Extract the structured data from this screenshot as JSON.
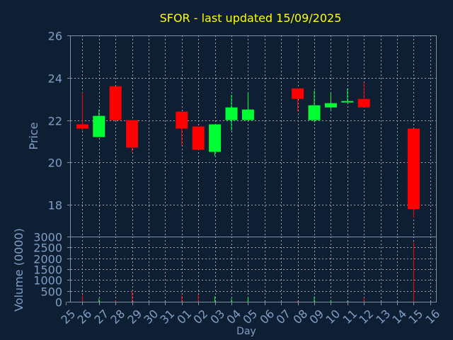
{
  "chart_data": {
    "type": "candlestick",
    "title": "SFOR - last updated 15/09/2025",
    "xlabel": "Day",
    "price_ylabel": "Price",
    "volume_ylabel": "Volume (0000)",
    "price_ylim": [
      16.5,
      26
    ],
    "price_yticks": [
      "18",
      "20",
      "22",
      "24",
      "26"
    ],
    "volume_ylim": [
      0,
      3000
    ],
    "volume_yticks": [
      "0",
      "500",
      "1000",
      "1500",
      "2000",
      "2500",
      "3000"
    ],
    "x_ticks": [
      "25",
      "26",
      "27",
      "28",
      "29",
      "30",
      "31",
      "01",
      "02",
      "03",
      "04",
      "05",
      "06",
      "07",
      "08",
      "09",
      "10",
      "11",
      "12",
      "13",
      "14",
      "15",
      "16"
    ],
    "grid": true,
    "colors": {
      "background": "#0f1f33",
      "up": "#00ff33",
      "down": "#ff0000",
      "axis": "#7f8fa6",
      "title": "#ffff00",
      "label": "#7f9fc6",
      "grid": "#9aa5b5"
    },
    "candles": [
      {
        "x": "26",
        "open": 21.8,
        "high": 23.3,
        "low": 21.5,
        "close": 21.6,
        "volume": 300
      },
      {
        "x": "27",
        "open": 21.2,
        "high": 22.5,
        "low": 21.2,
        "close": 22.2,
        "volume": 150
      },
      {
        "x": "28",
        "open": 23.6,
        "high": 23.6,
        "low": 22.0,
        "close": 22.0,
        "volume": 80
      },
      {
        "x": "29",
        "open": 22.0,
        "high": 22.0,
        "low": 20.5,
        "close": 20.7,
        "volume": 500
      },
      {
        "x": "01",
        "open": 22.4,
        "high": 22.4,
        "low": 20.8,
        "close": 21.6,
        "volume": 300
      },
      {
        "x": "02",
        "open": 21.7,
        "high": 21.7,
        "low": 20.6,
        "close": 20.6,
        "volume": 320
      },
      {
        "x": "03",
        "open": 20.5,
        "high": 21.8,
        "low": 20.3,
        "close": 21.8,
        "volume": 250
      },
      {
        "x": "04",
        "open": 22.0,
        "high": 23.2,
        "low": 21.5,
        "close": 22.6,
        "volume": 150
      },
      {
        "x": "05",
        "open": 22.0,
        "high": 23.3,
        "low": 22.0,
        "close": 22.5,
        "volume": 200
      },
      {
        "x": "08",
        "open": 23.5,
        "high": 23.5,
        "low": 22.4,
        "close": 23.0,
        "volume": 50
      },
      {
        "x": "09",
        "open": 22.0,
        "high": 23.4,
        "low": 21.9,
        "close": 22.7,
        "volume": 250
      },
      {
        "x": "10",
        "open": 22.6,
        "high": 23.3,
        "low": 22.5,
        "close": 22.8,
        "volume": 80
      },
      {
        "x": "11",
        "open": 22.9,
        "high": 23.5,
        "low": 22.9,
        "close": 22.9,
        "volume": 40
      },
      {
        "x": "12",
        "open": 23.0,
        "high": 23.8,
        "low": 22.6,
        "close": 22.6,
        "volume": 200
      },
      {
        "x": "15",
        "open": 21.6,
        "high": 21.6,
        "low": 17.4,
        "close": 17.8,
        "volume": 2750
      }
    ]
  }
}
